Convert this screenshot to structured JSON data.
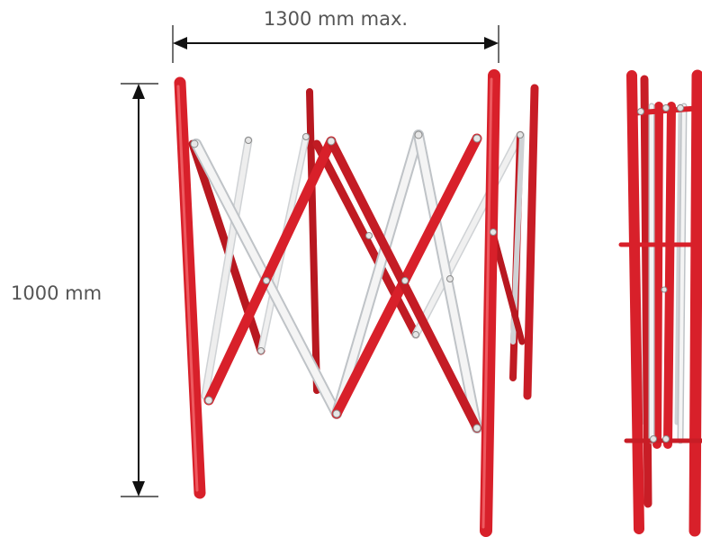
{
  "dimensions": {
    "width_label": "1300 mm max.",
    "height_label": "1000 mm"
  },
  "colors": {
    "pole_red": "#d8202a",
    "pole_red_dark": "#a8141c",
    "bar_white": "#f2f2f2",
    "bar_white_edge": "#b9bcc0",
    "dimension_line": "#111111",
    "label_text": "#555555"
  }
}
